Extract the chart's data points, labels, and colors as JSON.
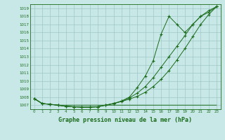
{
  "title": "Graphe pression niveau de la mer (hPa)",
  "x_values": [
    0,
    1,
    2,
    3,
    4,
    5,
    6,
    7,
    8,
    9,
    10,
    11,
    12,
    13,
    14,
    15,
    16,
    17,
    18,
    19,
    20,
    21,
    22,
    23
  ],
  "line_flat": [
    1007.8,
    1007.2,
    1007.1,
    1007.0,
    1007.0,
    1007.0,
    1007.0,
    1007.0,
    1007.0,
    1007.0,
    1007.0,
    1007.0,
    1007.0,
    1007.0,
    1007.0,
    1007.0,
    1007.0,
    1007.0,
    1007.0,
    1007.0,
    1007.0,
    1007.0,
    1007.0,
    1007.0
  ],
  "line_smooth": [
    1007.8,
    1007.2,
    1007.1,
    1007.0,
    1006.85,
    1006.8,
    1006.75,
    1006.75,
    1006.8,
    1007.0,
    1007.2,
    1007.45,
    1007.75,
    1008.1,
    1008.6,
    1009.3,
    1010.2,
    1011.3,
    1012.6,
    1014.0,
    1015.5,
    1017.0,
    1018.2,
    1019.2
  ],
  "line_mid": [
    1007.8,
    1007.2,
    1007.1,
    1007.0,
    1006.85,
    1006.8,
    1006.75,
    1006.75,
    1006.8,
    1007.0,
    1007.2,
    1007.5,
    1007.9,
    1008.5,
    1009.3,
    1010.4,
    1011.7,
    1013.0,
    1014.3,
    1015.6,
    1017.0,
    1018.0,
    1018.7,
    1019.2
  ],
  "line_spike": [
    1007.8,
    1007.2,
    1007.1,
    1007.0,
    1006.85,
    1006.8,
    1006.75,
    1006.75,
    1006.8,
    1007.0,
    1007.2,
    1007.5,
    1008.0,
    1009.2,
    1010.6,
    1012.5,
    1015.8,
    1018.0,
    1017.0,
    1016.0,
    1017.0,
    1018.0,
    1018.5,
    1019.2
  ],
  "line_color": "#1a6b1a",
  "bg_color": "#c8e8e8",
  "grid_color": "#a0c8c8",
  "ylim": [
    1006.5,
    1019.5
  ],
  "yticks": [
    1007,
    1008,
    1009,
    1010,
    1011,
    1012,
    1013,
    1014,
    1015,
    1016,
    1017,
    1018,
    1019
  ],
  "xlim": [
    -0.5,
    23.5
  ],
  "xticks": [
    0,
    1,
    2,
    3,
    4,
    5,
    6,
    7,
    8,
    9,
    10,
    11,
    12,
    13,
    14,
    15,
    16,
    17,
    18,
    19,
    20,
    21,
    22,
    23
  ],
  "xlabel": "Graphe pression niveau de la mer (hPa)",
  "marker": "+"
}
